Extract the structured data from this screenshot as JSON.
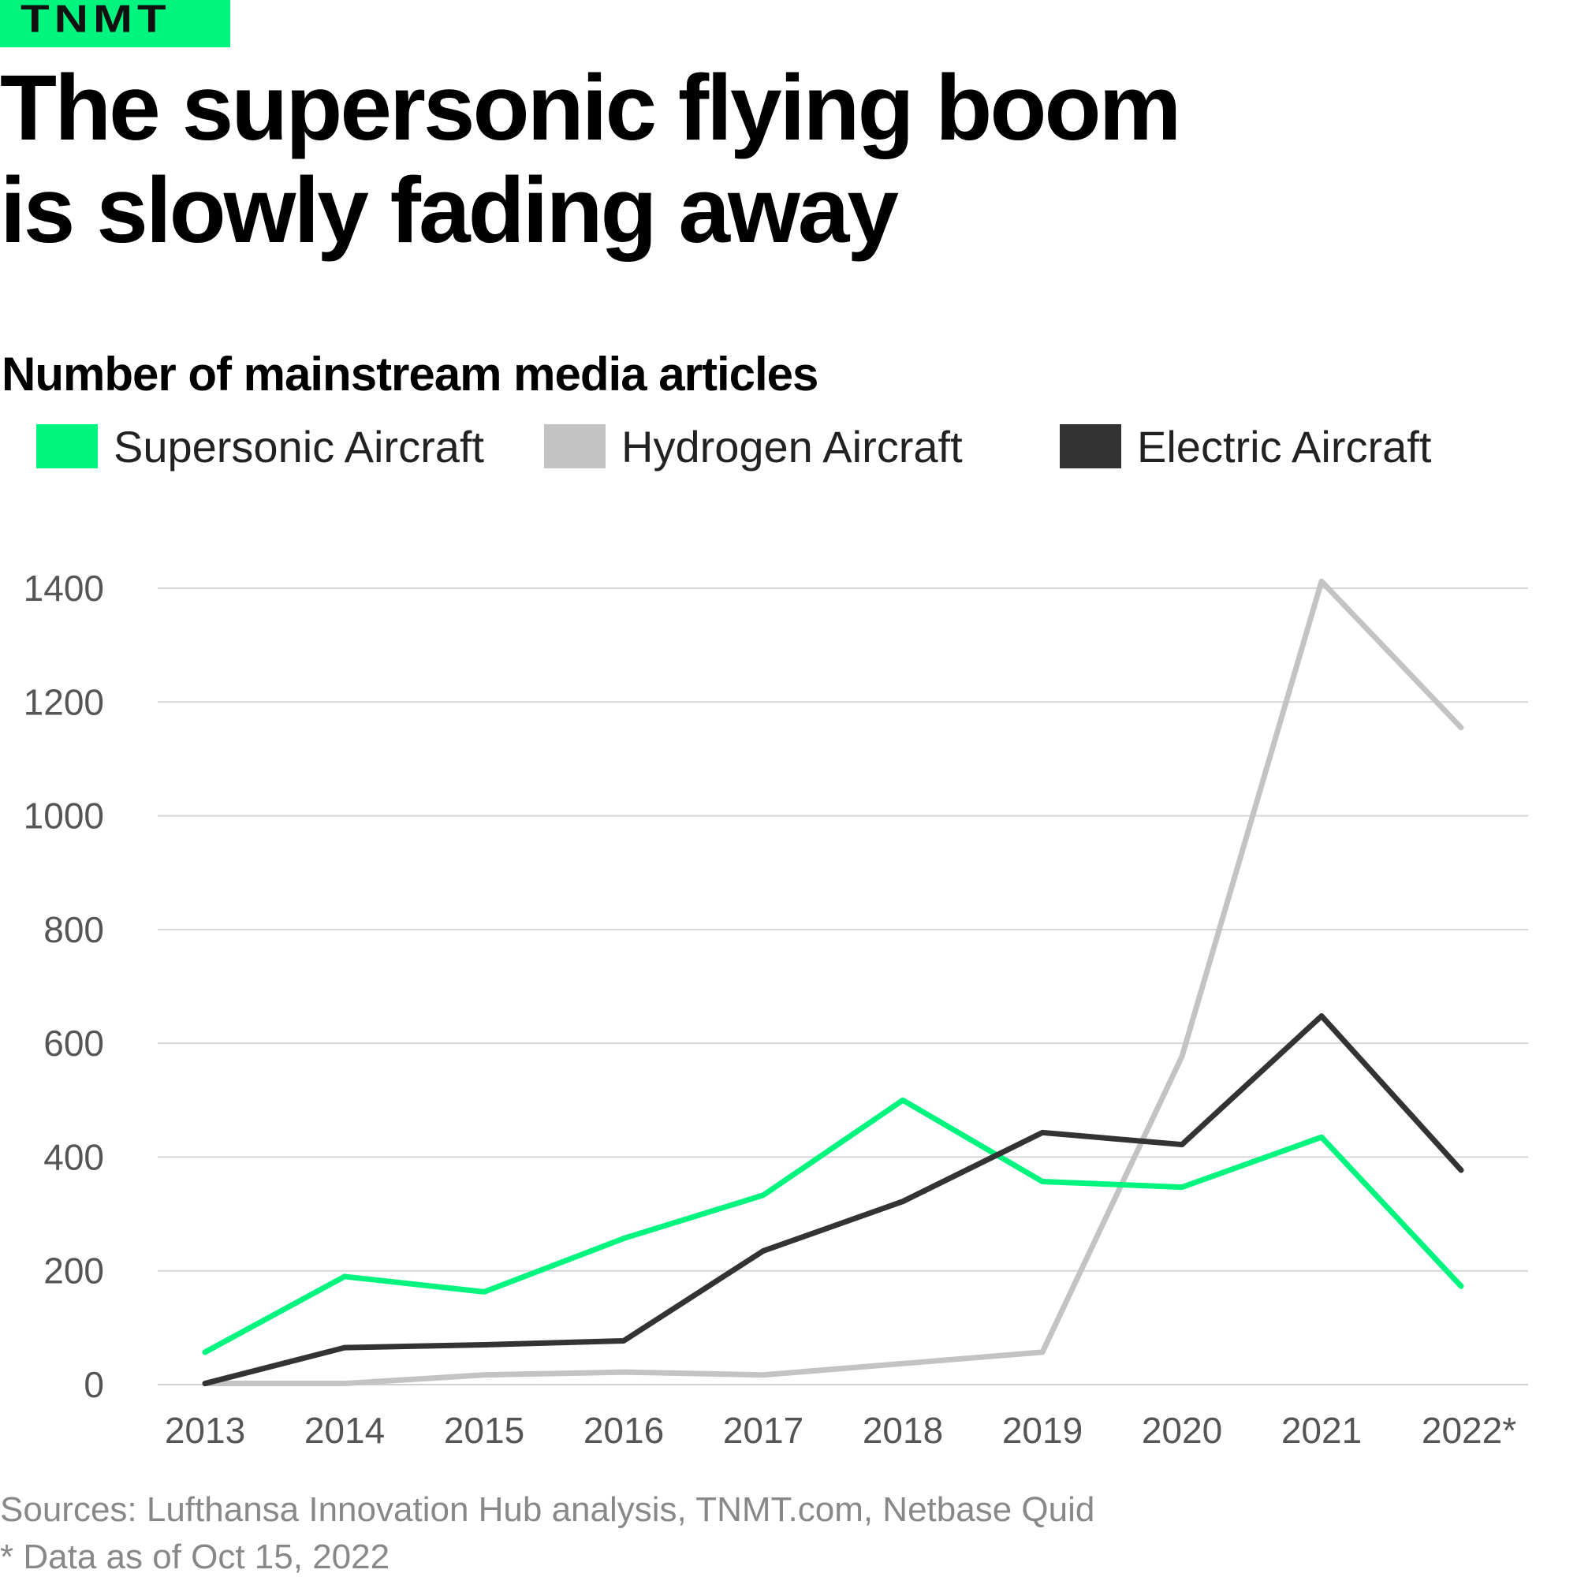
{
  "brand": "TNMT",
  "title_line1": "The supersonic flying boom",
  "title_line2": "is slowly fading away",
  "footnotes": {
    "sources": "Sources: Lufthansa Innovation Hub analysis, TNMT.com, Netbase Quid",
    "note": "* Data as of Oct 15, 2022"
  },
  "colors": {
    "accent": "#00f57f",
    "supersonic": "#00f57f",
    "hydrogen": "#c3c3c3",
    "electric": "#333333",
    "grid": "#d6d6d6"
  },
  "chart_data": {
    "type": "line",
    "title": "Number of mainstream media articles",
    "xlabel": "",
    "ylabel": "",
    "x": [
      "2013",
      "2014",
      "2015",
      "2016",
      "2017",
      "2018",
      "2019",
      "2020",
      "2021",
      "2022*"
    ],
    "ylim": [
      0,
      1400
    ],
    "yticks": [
      "0",
      "200",
      "400",
      "600",
      "800",
      "1000",
      "1200",
      "1400"
    ],
    "grid": true,
    "legend_position": "top-left",
    "series": [
      {
        "name": "Supersonic Aircraft",
        "color": "#00f57f",
        "values": [
          57,
          190,
          163,
          257,
          333,
          500,
          357,
          347,
          435,
          173
        ]
      },
      {
        "name": "Hydrogen Aircraft",
        "color": "#c3c3c3",
        "values": [
          2,
          2,
          17,
          22,
          17,
          37,
          57,
          577,
          1412,
          1155
        ]
      },
      {
        "name": "Electric Aircraft",
        "color": "#333333",
        "values": [
          2,
          65,
          70,
          77,
          235,
          322,
          443,
          422,
          648,
          377
        ]
      }
    ]
  }
}
